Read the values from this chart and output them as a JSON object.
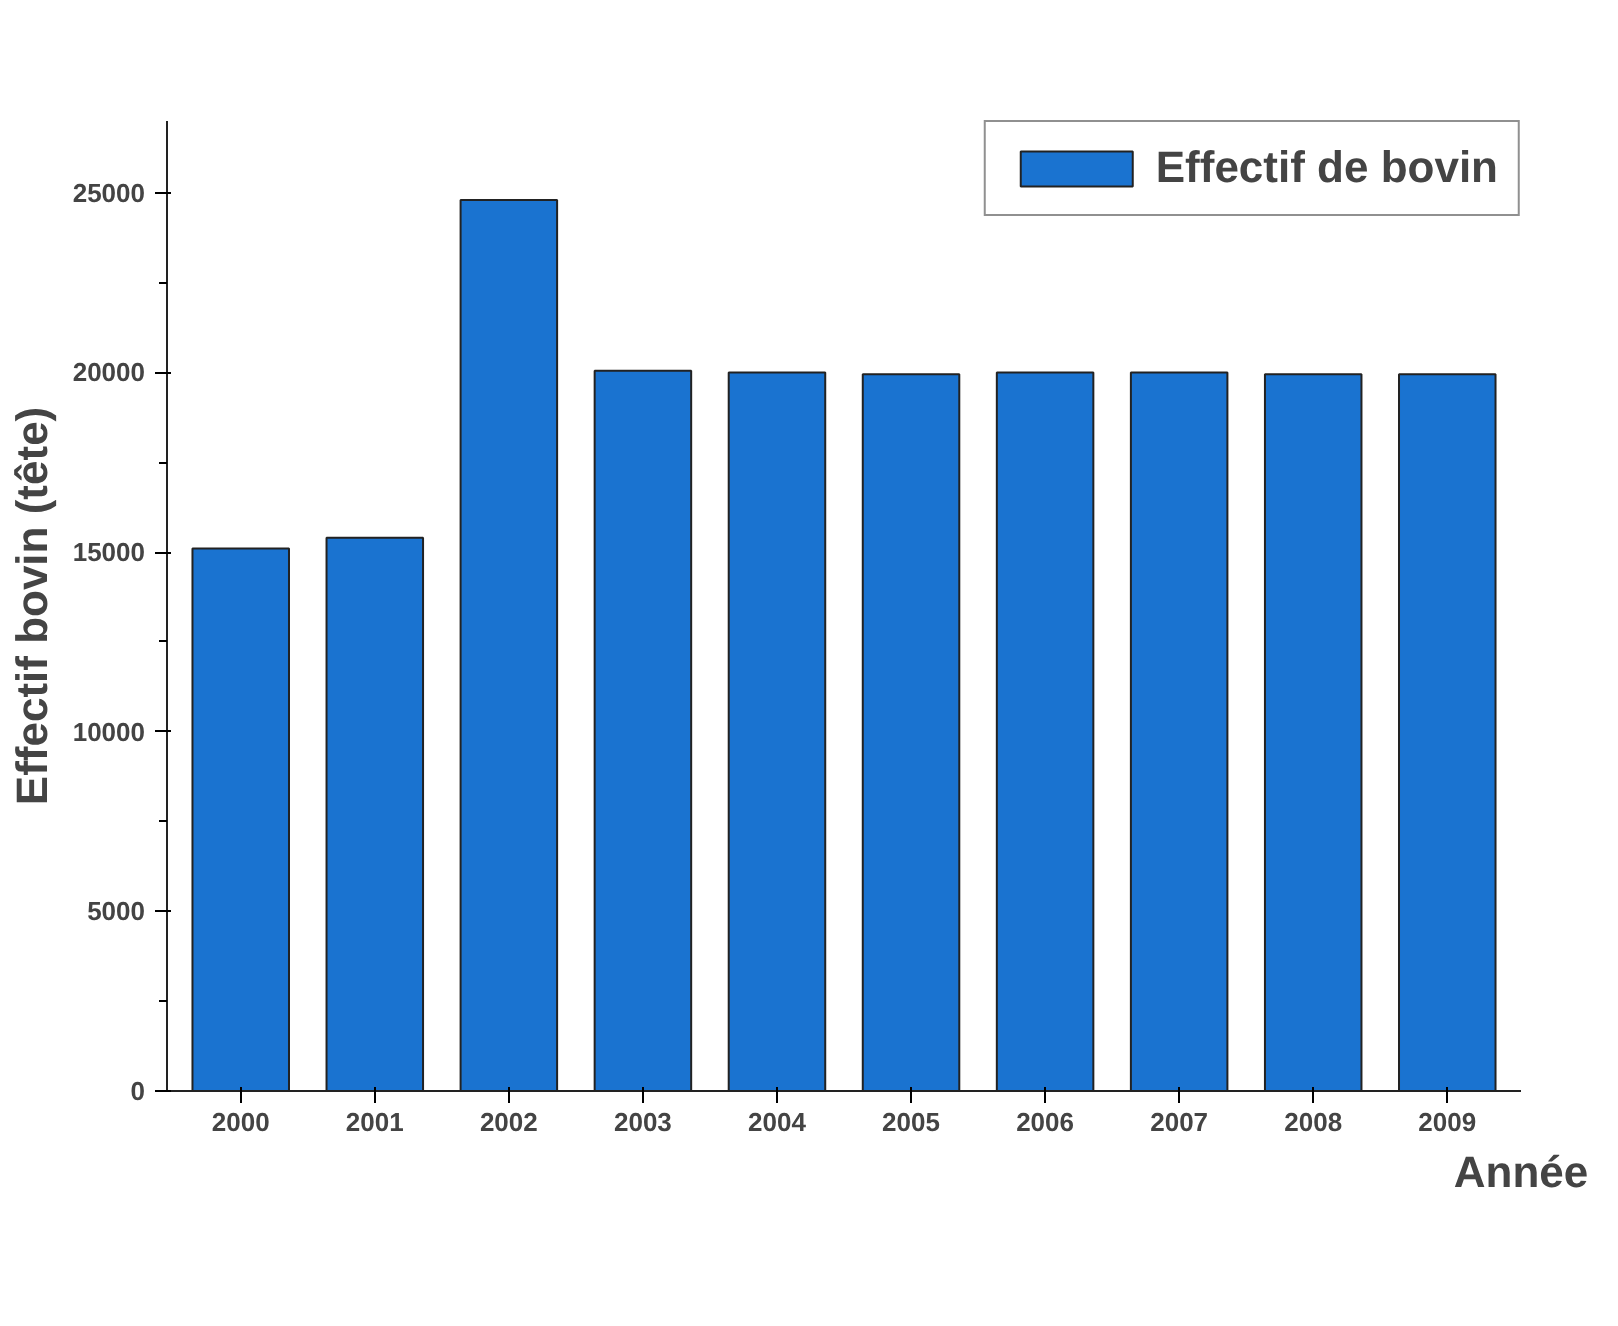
{
  "chart_data": {
    "type": "bar",
    "xlabel": "Année",
    "ylabel": "Effectif bovin (tête)",
    "categories": [
      "2000",
      "2001",
      "2002",
      "2003",
      "2004",
      "2005",
      "2006",
      "2007",
      "2008",
      "2009"
    ],
    "series": [
      {
        "name": "Effectif de bovin",
        "color": "#1a73d0",
        "values": [
          15100,
          15400,
          24800,
          20050,
          20000,
          19950,
          20000,
          20000,
          19950,
          19950
        ]
      }
    ],
    "ylim": [
      0,
      27000
    ],
    "yticks": [
      0,
      5000,
      10000,
      15000,
      20000,
      25000
    ],
    "grid": false,
    "legend": "top"
  }
}
